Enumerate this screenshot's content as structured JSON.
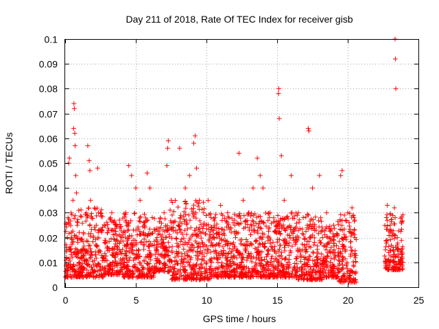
{
  "chart_data": {
    "type": "scatter",
    "title": "Day 211 of 2018, Rate Of TEC Index for receiver gisb",
    "xlabel": "GPS time / hours",
    "ylabel": "ROTI / TECUs",
    "xlim": [
      0,
      25
    ],
    "ylim": [
      0,
      0.1
    ],
    "xticks": [
      0,
      5,
      10,
      15,
      20,
      25
    ],
    "yticks": [
      0,
      0.01,
      0.02,
      0.03,
      0.04,
      0.05,
      0.06,
      0.07,
      0.08,
      0.09,
      0.1
    ],
    "xtick_labels": [
      "0",
      "5",
      "10",
      "15",
      "20",
      "25"
    ],
    "ytick_labels": [
      "0",
      "0.01",
      "0.02",
      "0.03",
      "0.04",
      "0.05",
      "0.06",
      "0.07",
      "0.08",
      "0.09",
      "0.1"
    ],
    "grid": true,
    "marker": "+",
    "color": "#ff0000",
    "series": [
      {
        "points": [
          [
            0.1,
            0.012
          ],
          [
            0.15,
            0.02
          ],
          [
            0.2,
            0.028
          ],
          [
            0.25,
            0.05
          ],
          [
            0.3,
            0.052
          ],
          [
            0.35,
            0.015
          ],
          [
            0.4,
            0.008
          ],
          [
            0.45,
            0.004
          ],
          [
            0.5,
            0.018
          ],
          [
            0.55,
            0.035
          ],
          [
            0.6,
            0.064
          ],
          [
            0.62,
            0.074
          ],
          [
            0.65,
            0.072
          ],
          [
            0.68,
            0.062
          ],
          [
            0.7,
            0.057
          ],
          [
            0.75,
            0.045
          ],
          [
            0.8,
            0.038
          ],
          [
            0.85,
            0.025
          ],
          [
            0.9,
            0.012
          ],
          [
            1.0,
            0.01
          ],
          [
            1.2,
            0.015
          ],
          [
            1.3,
            0.022
          ],
          [
            1.5,
            0.03
          ],
          [
            1.6,
            0.057
          ],
          [
            1.7,
            0.051
          ],
          [
            1.75,
            0.047
          ],
          [
            1.8,
            0.035
          ],
          [
            2.0,
            0.02
          ],
          [
            2.2,
            0.025
          ],
          [
            2.3,
            0.048
          ],
          [
            2.5,
            0.03
          ],
          [
            2.8,
            0.018
          ],
          [
            3.0,
            0.022
          ],
          [
            3.3,
            0.03
          ],
          [
            3.6,
            0.025
          ],
          [
            4.0,
            0.02
          ],
          [
            4.3,
            0.03
          ],
          [
            4.5,
            0.049
          ],
          [
            4.7,
            0.045
          ],
          [
            5.0,
            0.04
          ],
          [
            5.3,
            0.035
          ],
          [
            5.6,
            0.025
          ],
          [
            5.8,
            0.046
          ],
          [
            6.0,
            0.04
          ],
          [
            6.5,
            0.02
          ],
          [
            7.0,
            0.03
          ],
          [
            7.2,
            0.049
          ],
          [
            7.25,
            0.056
          ],
          [
            7.3,
            0.059
          ],
          [
            7.5,
            0.035
          ],
          [
            8.0,
            0.025
          ],
          [
            8.1,
            0.056
          ],
          [
            8.5,
            0.04
          ],
          [
            8.8,
            0.045
          ],
          [
            9.1,
            0.058
          ],
          [
            9.2,
            0.061
          ],
          [
            9.3,
            0.048
          ],
          [
            9.5,
            0.035
          ],
          [
            9.8,
            0.03
          ],
          [
            10.0,
            0.025
          ],
          [
            10.5,
            0.02
          ],
          [
            11.0,
            0.033
          ],
          [
            11.5,
            0.03
          ],
          [
            12.0,
            0.025
          ],
          [
            12.3,
            0.054
          ],
          [
            12.6,
            0.035
          ],
          [
            13.0,
            0.03
          ],
          [
            13.3,
            0.04
          ],
          [
            13.6,
            0.052
          ],
          [
            13.8,
            0.045
          ],
          [
            14.0,
            0.04
          ],
          [
            14.5,
            0.03
          ],
          [
            15.0,
            0.025
          ],
          [
            15.1,
            0.078
          ],
          [
            15.12,
            0.08
          ],
          [
            15.15,
            0.068
          ],
          [
            15.3,
            0.053
          ],
          [
            15.5,
            0.035
          ],
          [
            16.0,
            0.045
          ],
          [
            16.5,
            0.03
          ],
          [
            17.2,
            0.064
          ],
          [
            17.25,
            0.063
          ],
          [
            17.5,
            0.04
          ],
          [
            18.0,
            0.045
          ],
          [
            18.5,
            0.03
          ],
          [
            19.0,
            0.025
          ],
          [
            19.5,
            0.045
          ],
          [
            19.6,
            0.047
          ],
          [
            20.0,
            0.03
          ],
          [
            20.3,
            0.032
          ],
          [
            20.5,
            0.02
          ],
          [
            22.8,
            0.033
          ],
          [
            23.0,
            0.025
          ],
          [
            23.3,
            0.032
          ],
          [
            23.35,
            0.1
          ],
          [
            23.37,
            0.092
          ],
          [
            23.4,
            0.08
          ],
          [
            23.5,
            0.02
          ],
          [
            23.8,
            0.015
          ],
          [
            23.9,
            0.01
          ]
        ]
      }
    ],
    "dense_bands": [
      [
        0.0,
        0.9,
        0.004,
        0.03
      ],
      [
        0.9,
        2.7,
        0.004,
        0.032
      ],
      [
        2.7,
        4.1,
        0.005,
        0.028
      ],
      [
        4.1,
        6.3,
        0.004,
        0.03
      ],
      [
        6.3,
        7.4,
        0.006,
        0.028
      ],
      [
        7.4,
        10.3,
        0.003,
        0.035
      ],
      [
        10.3,
        11.8,
        0.004,
        0.03
      ],
      [
        11.8,
        15.0,
        0.004,
        0.03
      ],
      [
        15.0,
        16.2,
        0.004,
        0.03
      ],
      [
        16.2,
        18.2,
        0.003,
        0.03
      ],
      [
        18.2,
        19.3,
        0.004,
        0.025
      ],
      [
        19.3,
        20.6,
        0.002,
        0.03
      ],
      [
        22.6,
        23.9,
        0.007,
        0.03
      ]
    ]
  }
}
